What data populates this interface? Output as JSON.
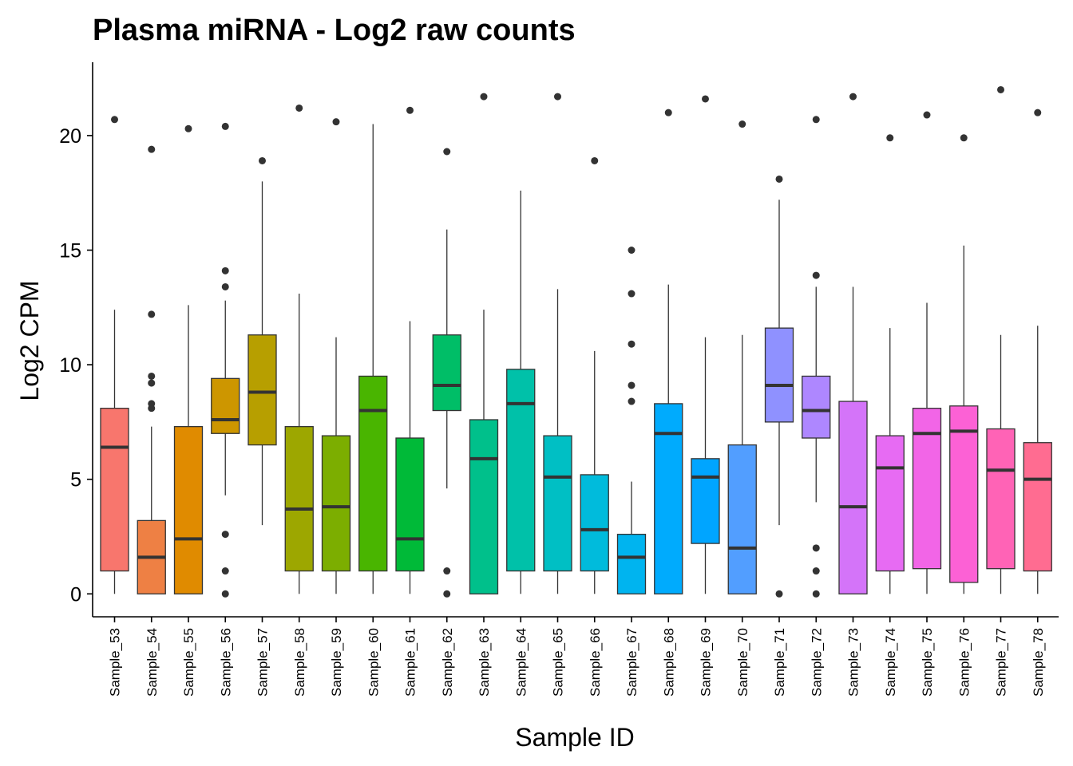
{
  "chart_data": {
    "type": "box",
    "title": "Plasma miRNA - Log2 raw counts",
    "xlabel": "Sample ID",
    "ylabel": "Log2 CPM",
    "ylim": [
      -1.0,
      23.2
    ],
    "yticks": [
      0,
      5,
      10,
      15,
      20
    ],
    "grid": false,
    "legend": "none",
    "series": [
      {
        "category": "Sample_53",
        "color": "#F8766D",
        "whisker_low": 0,
        "q1": 1.0,
        "median": 6.4,
        "q3": 8.1,
        "whisker_high": 12.4,
        "outliers": [
          20.7
        ]
      },
      {
        "category": "Sample_54",
        "color": "#EE8044",
        "whisker_low": 0,
        "q1": 0,
        "median": 1.6,
        "q3": 3.2,
        "whisker_high": 7.3,
        "outliers": [
          8.1,
          8.3,
          9.2,
          9.5,
          12.2,
          19.4
        ]
      },
      {
        "category": "Sample_55",
        "color": "#E08B00",
        "whisker_low": 0,
        "q1": 0,
        "median": 2.4,
        "q3": 7.3,
        "whisker_high": 12.6,
        "outliers": [
          20.3
        ]
      },
      {
        "category": "Sample_56",
        "color": "#CD9600",
        "whisker_low": 4.3,
        "q1": 7.0,
        "median": 7.6,
        "q3": 9.4,
        "whisker_high": 12.8,
        "outliers": [
          0,
          1.0,
          2.6,
          13.4,
          14.1,
          20.4
        ]
      },
      {
        "category": "Sample_57",
        "color": "#B79F00",
        "whisker_low": 3.0,
        "q1": 6.5,
        "median": 8.8,
        "q3": 11.3,
        "whisker_high": 18.0,
        "outliers": [
          18.9
        ]
      },
      {
        "category": "Sample_58",
        "color": "#9DA700",
        "whisker_low": 0,
        "q1": 1.0,
        "median": 3.7,
        "q3": 7.3,
        "whisker_high": 13.1,
        "outliers": [
          21.2
        ]
      },
      {
        "category": "Sample_59",
        "color": "#7CAE00",
        "whisker_low": 0,
        "q1": 1.0,
        "median": 3.8,
        "q3": 6.9,
        "whisker_high": 11.2,
        "outliers": [
          20.6
        ]
      },
      {
        "category": "Sample_60",
        "color": "#49B500",
        "whisker_low": 0,
        "q1": 1.0,
        "median": 8.0,
        "q3": 9.5,
        "whisker_high": 20.5,
        "outliers": []
      },
      {
        "category": "Sample_61",
        "color": "#00BA38",
        "whisker_low": 0,
        "q1": 1.0,
        "median": 2.4,
        "q3": 6.8,
        "whisker_high": 11.9,
        "outliers": [
          21.1
        ]
      },
      {
        "category": "Sample_62",
        "color": "#00BE67",
        "whisker_low": 4.6,
        "q1": 8.0,
        "median": 9.1,
        "q3": 11.3,
        "whisker_high": 15.9,
        "outliers": [
          0,
          1.0,
          19.3
        ]
      },
      {
        "category": "Sample_63",
        "color": "#00C08B",
        "whisker_low": 0,
        "q1": 0,
        "median": 5.9,
        "q3": 7.6,
        "whisker_high": 12.4,
        "outliers": [
          21.7
        ]
      },
      {
        "category": "Sample_64",
        "color": "#00C1A9",
        "whisker_low": 0,
        "q1": 1.0,
        "median": 8.3,
        "q3": 9.8,
        "whisker_high": 17.6,
        "outliers": []
      },
      {
        "category": "Sample_65",
        "color": "#00BFC4",
        "whisker_low": 0,
        "q1": 1.0,
        "median": 5.1,
        "q3": 6.9,
        "whisker_high": 13.3,
        "outliers": [
          21.7
        ]
      },
      {
        "category": "Sample_66",
        "color": "#00BBDC",
        "whisker_low": 0,
        "q1": 1.0,
        "median": 2.8,
        "q3": 5.2,
        "whisker_high": 10.6,
        "outliers": [
          18.9
        ]
      },
      {
        "category": "Sample_67",
        "color": "#00B4EF",
        "whisker_low": 0,
        "q1": 0,
        "median": 1.6,
        "q3": 2.6,
        "whisker_high": 4.9,
        "outliers": [
          8.4,
          9.1,
          10.9,
          13.1,
          15.0
        ]
      },
      {
        "category": "Sample_68",
        "color": "#00ABFD",
        "whisker_low": 0,
        "q1": 0,
        "median": 7.0,
        "q3": 8.3,
        "whisker_high": 13.5,
        "outliers": [
          21.0
        ]
      },
      {
        "category": "Sample_69",
        "color": "#00A5FF",
        "whisker_low": 0,
        "q1": 2.2,
        "median": 5.1,
        "q3": 5.9,
        "whisker_high": 11.2,
        "outliers": [
          21.6
        ]
      },
      {
        "category": "Sample_70",
        "color": "#529EFF",
        "whisker_low": 0,
        "q1": 0,
        "median": 2.0,
        "q3": 6.5,
        "whisker_high": 11.3,
        "outliers": [
          20.5
        ]
      },
      {
        "category": "Sample_71",
        "color": "#8F91FF",
        "whisker_low": 3.0,
        "q1": 7.5,
        "median": 9.1,
        "q3": 11.6,
        "whisker_high": 17.2,
        "outliers": [
          0,
          18.1
        ]
      },
      {
        "category": "Sample_72",
        "color": "#AE87FF",
        "whisker_low": 4.0,
        "q1": 6.8,
        "median": 8.0,
        "q3": 9.5,
        "whisker_high": 13.4,
        "outliers": [
          0,
          1.0,
          2.0,
          13.9,
          20.7
        ]
      },
      {
        "category": "Sample_73",
        "color": "#D474F9",
        "whisker_low": 0,
        "q1": 0,
        "median": 3.8,
        "q3": 8.4,
        "whisker_high": 13.4,
        "outliers": [
          21.7
        ]
      },
      {
        "category": "Sample_74",
        "color": "#E76BF3",
        "whisker_low": 0,
        "q1": 1.0,
        "median": 5.5,
        "q3": 6.9,
        "whisker_high": 11.6,
        "outliers": [
          19.9
        ]
      },
      {
        "category": "Sample_75",
        "color": "#F265E7",
        "whisker_low": 0,
        "q1": 1.1,
        "median": 7.0,
        "q3": 8.1,
        "whisker_high": 12.7,
        "outliers": [
          20.9
        ]
      },
      {
        "category": "Sample_76",
        "color": "#FC61D5",
        "whisker_low": 0,
        "q1": 0.5,
        "median": 7.1,
        "q3": 8.2,
        "whisker_high": 15.2,
        "outliers": [
          19.9
        ]
      },
      {
        "category": "Sample_77",
        "color": "#FF63B6",
        "whisker_low": 0,
        "q1": 1.1,
        "median": 5.4,
        "q3": 7.2,
        "whisker_high": 11.3,
        "outliers": [
          22.0
        ]
      },
      {
        "category": "Sample_78",
        "color": "#FF6C91",
        "whisker_low": 0,
        "q1": 1.0,
        "median": 5.0,
        "q3": 6.6,
        "whisker_high": 11.7,
        "outliers": [
          21.0
        ]
      }
    ]
  }
}
